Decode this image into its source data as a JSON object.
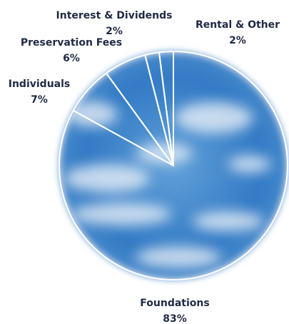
{
  "chart_data": {
    "type": "pie",
    "categories": [
      "Rental & Other",
      "Interest & Dividends",
      "Preservation Fees",
      "Individuals",
      "Foundations"
    ],
    "values": [
      2,
      2,
      6,
      7,
      83
    ],
    "value_labels": [
      "2%",
      "2%",
      "6%",
      "7%",
      "83%"
    ]
  }
}
